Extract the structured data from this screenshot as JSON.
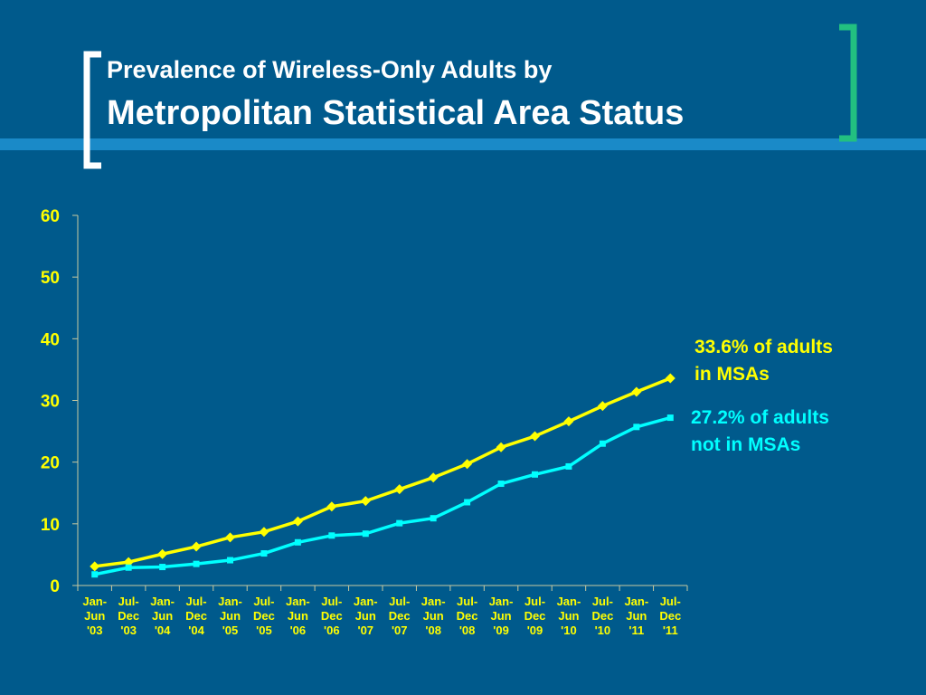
{
  "slide": {
    "title_line1": "Prevalence of Wireless-Only Adults by",
    "title_line2": "Metropolitan Statistical Area Status"
  },
  "colors": {
    "background": "#005a8c",
    "stripe": "#1a8ac8",
    "bracket_left": "#ffffff",
    "bracket_right": "#22c080",
    "msa_series": "#ffff00",
    "non_msa_series": "#00ffff",
    "axis_text": "#ffff00"
  },
  "chart_data": {
    "type": "line",
    "categories": [
      [
        "Jan-",
        "Jun",
        "'03"
      ],
      [
        "Jul-",
        "Dec",
        "'03"
      ],
      [
        "Jan-",
        "Jun",
        "'04"
      ],
      [
        "Jul-",
        "Dec",
        "'04"
      ],
      [
        "Jan-",
        "Jun",
        "'05"
      ],
      [
        "Jul-",
        "Dec",
        "'05"
      ],
      [
        "Jan-",
        "Jun",
        "'06"
      ],
      [
        "Jul-",
        "Dec",
        "'06"
      ],
      [
        "Jan-",
        "Jun",
        "'07"
      ],
      [
        "Jul-",
        "Dec",
        "'07"
      ],
      [
        "Jan-",
        "Jun",
        "'08"
      ],
      [
        "Jul-",
        "Dec",
        "'08"
      ],
      [
        "Jan-",
        "Jun",
        "'09"
      ],
      [
        "Jul-",
        "Dec",
        "'09"
      ],
      [
        "Jan-",
        "Jun",
        "'10"
      ],
      [
        "Jul-",
        "Dec",
        "'10"
      ],
      [
        "Jan-",
        "Jun",
        "'11"
      ],
      [
        "Jul-",
        "Dec",
        "'11"
      ]
    ],
    "series": [
      {
        "key": "msa",
        "marker": "diamond",
        "values": [
          3.1,
          3.8,
          5.1,
          6.3,
          7.8,
          8.7,
          10.4,
          12.8,
          13.7,
          15.6,
          17.5,
          19.7,
          22.4,
          24.2,
          26.6,
          29.1,
          31.4,
          33.6
        ],
        "end_label": [
          "33.6% of adults",
          "in MSAs"
        ]
      },
      {
        "key": "non_msa",
        "marker": "square",
        "values": [
          1.8,
          2.9,
          3.0,
          3.5,
          4.1,
          5.2,
          7.0,
          8.1,
          8.4,
          10.1,
          10.9,
          13.5,
          16.5,
          18.0,
          19.3,
          23.0,
          25.7,
          27.2
        ],
        "end_label": [
          "27.2% of adults",
          "not in MSAs"
        ]
      }
    ],
    "yticks": [
      "0",
      "10",
      "20",
      "30",
      "40",
      "50",
      "60"
    ],
    "ylim": [
      0,
      60
    ],
    "grid": false,
    "xlabel": "",
    "ylabel": ""
  }
}
